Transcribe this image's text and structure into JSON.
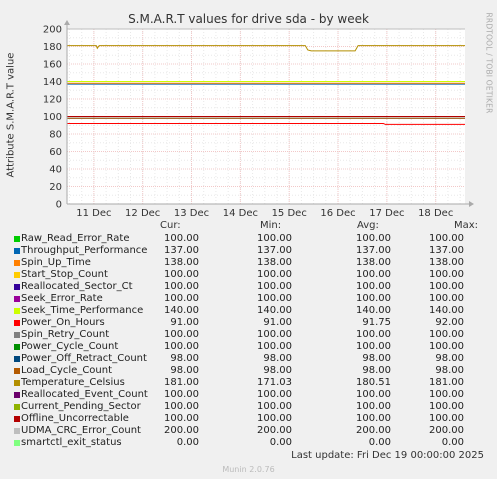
{
  "chart_data": {
    "type": "line",
    "title": "S.M.A.R.T values for drive sda - by week",
    "ylabel": "Attribute S.M.A.R.T value",
    "xlabel": "",
    "ylim": [
      0,
      200
    ],
    "yticks": [
      0,
      20,
      40,
      60,
      80,
      100,
      120,
      140,
      160,
      180,
      200
    ],
    "x_tick_labels": [
      "11 Dec",
      "12 Dec",
      "13 Dec",
      "14 Dec",
      "15 Dec",
      "16 Dec",
      "17 Dec",
      "18 Dec"
    ],
    "x_range_days": [
      0,
      8.15
    ],
    "x_tick_positions_days": [
      0.55,
      1.55,
      2.55,
      3.55,
      4.55,
      5.55,
      6.55,
      7.55
    ],
    "grid": true,
    "side_label": "RRDTOOL / TOBI OETIKER",
    "columns": [
      "Cur:",
      "Min:",
      "Avg:",
      "Max:"
    ],
    "series": [
      {
        "name": "Raw_Read_Error_Rate",
        "color": "#00cc00",
        "cur": "100.00",
        "min": "100.00",
        "avg": "100.00",
        "max": "100.00",
        "points": [
          [
            0,
            100
          ],
          [
            8.15,
            100
          ]
        ]
      },
      {
        "name": "Throughput_Performance",
        "color": "#0066b3",
        "cur": "137.00",
        "min": "137.00",
        "avg": "137.00",
        "max": "137.00",
        "points": [
          [
            0,
            137
          ],
          [
            8.15,
            137
          ]
        ]
      },
      {
        "name": "Spin_Up_Time",
        "color": "#ff8000",
        "cur": "138.00",
        "min": "138.00",
        "avg": "138.00",
        "max": "138.00",
        "points": [
          [
            0,
            138
          ],
          [
            8.15,
            138
          ]
        ]
      },
      {
        "name": "Start_Stop_Count",
        "color": "#ffcc00",
        "cur": "100.00",
        "min": "100.00",
        "avg": "100.00",
        "max": "100.00",
        "points": [
          [
            0,
            100
          ],
          [
            8.15,
            100
          ]
        ]
      },
      {
        "name": "Reallocated_Sector_Ct",
        "color": "#330099",
        "cur": "100.00",
        "min": "100.00",
        "avg": "100.00",
        "max": "100.00",
        "points": [
          [
            0,
            100
          ],
          [
            8.15,
            100
          ]
        ]
      },
      {
        "name": "Seek_Error_Rate",
        "color": "#990099",
        "cur": "100.00",
        "min": "100.00",
        "avg": "100.00",
        "max": "100.00",
        "points": [
          [
            0,
            100
          ],
          [
            8.15,
            100
          ]
        ]
      },
      {
        "name": "Seek_Time_Performance",
        "color": "#ccff00",
        "cur": "140.00",
        "min": "140.00",
        "avg": "140.00",
        "max": "140.00",
        "points": [
          [
            0,
            140
          ],
          [
            8.15,
            140
          ]
        ]
      },
      {
        "name": "Power_On_Hours",
        "color": "#ff0000",
        "cur": "91.00",
        "min": "91.00",
        "avg": "91.75",
        "max": "92.00",
        "points": [
          [
            0,
            92
          ],
          [
            6.48,
            92
          ],
          [
            6.52,
            91
          ],
          [
            8.15,
            91
          ]
        ]
      },
      {
        "name": "Spin_Retry_Count",
        "color": "#808080",
        "cur": "100.00",
        "min": "100.00",
        "avg": "100.00",
        "max": "100.00",
        "points": [
          [
            0,
            100
          ],
          [
            8.15,
            100
          ]
        ]
      },
      {
        "name": "Power_Cycle_Count",
        "color": "#008f00",
        "cur": "100.00",
        "min": "100.00",
        "avg": "100.00",
        "max": "100.00",
        "points": [
          [
            0,
            100
          ],
          [
            8.15,
            100
          ]
        ]
      },
      {
        "name": "Power_Off_Retract_Count",
        "color": "#00487d",
        "cur": "98.00",
        "min": "98.00",
        "avg": "98.00",
        "max": "98.00",
        "points": [
          [
            0,
            98
          ],
          [
            8.15,
            98
          ]
        ]
      },
      {
        "name": "Load_Cycle_Count",
        "color": "#b35a00",
        "cur": "98.00",
        "min": "98.00",
        "avg": "98.00",
        "max": "98.00",
        "points": [
          [
            0,
            98
          ],
          [
            8.15,
            98
          ]
        ]
      },
      {
        "name": "Temperature_Celsius",
        "color": "#b38f00",
        "cur": "181.00",
        "min": "171.03",
        "avg": "180.51",
        "max": "181.00",
        "points": [
          [
            0,
            181
          ],
          [
            0.6,
            181
          ],
          [
            0.62,
            178
          ],
          [
            0.66,
            181
          ],
          [
            4.88,
            181
          ],
          [
            4.93,
            176
          ],
          [
            5.0,
            175
          ],
          [
            5.9,
            175
          ],
          [
            5.96,
            181
          ],
          [
            8.15,
            181
          ]
        ]
      },
      {
        "name": "Reallocated_Event_Count",
        "color": "#6b006b",
        "cur": "100.00",
        "min": "100.00",
        "avg": "100.00",
        "max": "100.00",
        "points": [
          [
            0,
            100
          ],
          [
            8.15,
            100
          ]
        ]
      },
      {
        "name": "Current_Pending_Sector",
        "color": "#8fb300",
        "cur": "100.00",
        "min": "100.00",
        "avg": "100.00",
        "max": "100.00",
        "points": [
          [
            0,
            100
          ],
          [
            8.15,
            100
          ]
        ]
      },
      {
        "name": "Offline_Uncorrectable",
        "color": "#b30000",
        "cur": "100.00",
        "min": "100.00",
        "avg": "100.00",
        "max": "100.00",
        "points": [
          [
            0,
            100
          ],
          [
            8.15,
            100
          ]
        ]
      },
      {
        "name": "UDMA_CRC_Error_Count",
        "color": "#bebebe",
        "cur": "200.00",
        "min": "200.00",
        "avg": "200.00",
        "max": "200.00",
        "points": [
          [
            0,
            200
          ],
          [
            8.15,
            200
          ]
        ]
      },
      {
        "name": "smartctl_exit_status",
        "color": "#80ff80",
        "cur": "0.00",
        "min": "0.00",
        "avg": "0.00",
        "max": "0.00",
        "dashed": true,
        "points": [
          [
            0,
            0
          ],
          [
            8.15,
            0
          ]
        ]
      }
    ]
  },
  "footer": {
    "last_update": "Last update: Fri Dec 19 00:00:00 2025",
    "generator": "Munin 2.0.76"
  }
}
